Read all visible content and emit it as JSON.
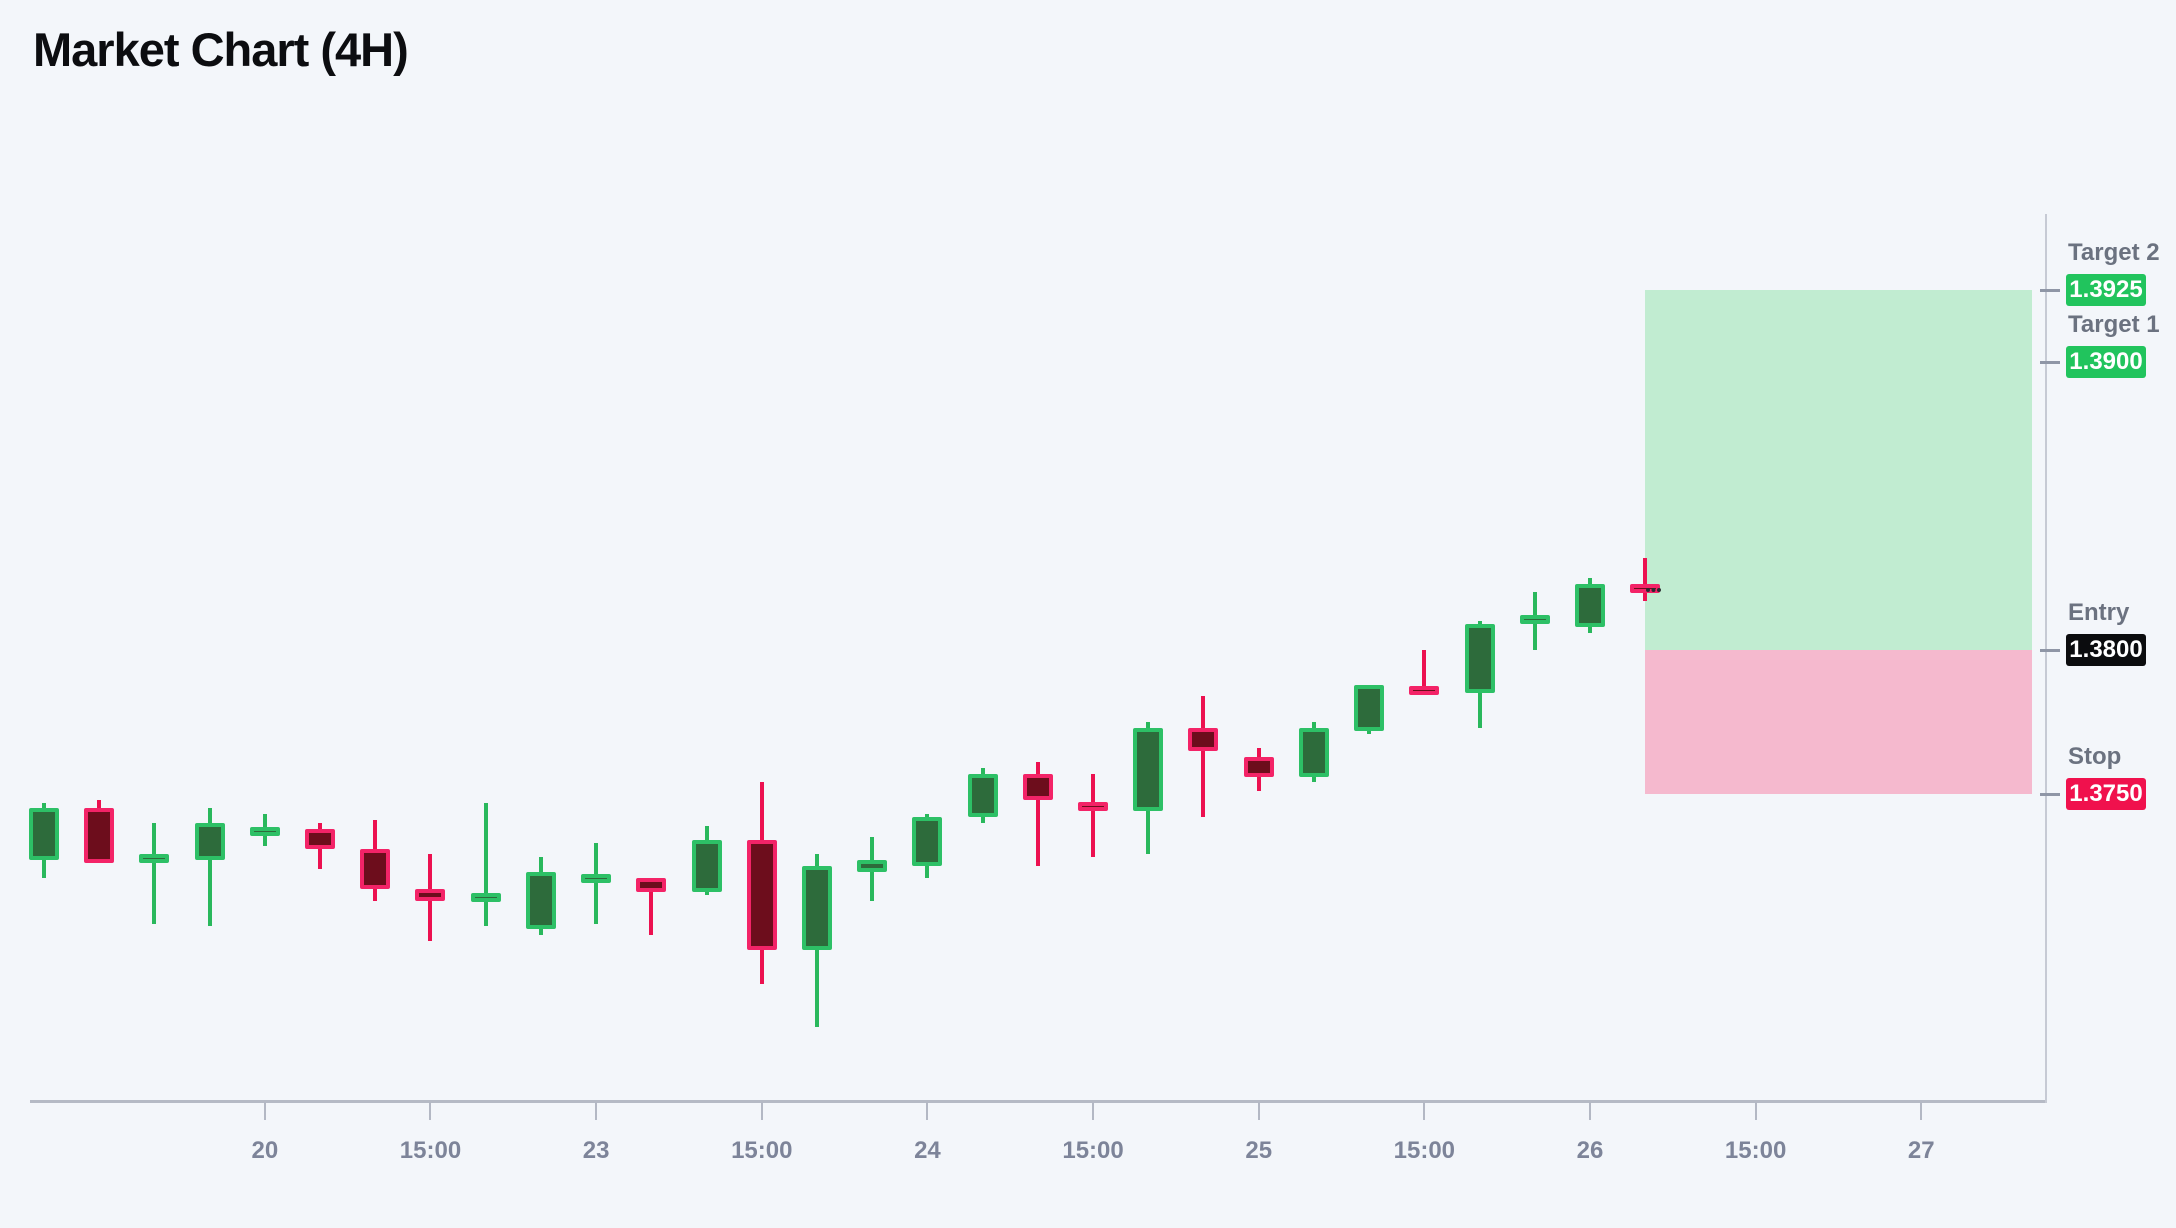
{
  "page_title": "Market Chart (4H)",
  "chart_data": {
    "type": "candlestick",
    "title": "Market Chart (4H)",
    "timeframe": "4H",
    "grid": false,
    "legend": false,
    "background": "#f3f6fa",
    "price_axis": {
      "side": "right",
      "visible_range": [
        1.366,
        1.394
      ]
    },
    "x_ticks": [
      {
        "label": "20",
        "candle_index": 4
      },
      {
        "label": "15:00",
        "candle_index": 7
      },
      {
        "label": "23",
        "candle_index": 10
      },
      {
        "label": "15:00",
        "candle_index": 13
      },
      {
        "label": "24",
        "candle_index": 16
      },
      {
        "label": "15:00",
        "candle_index": 19
      },
      {
        "label": "25",
        "candle_index": 22
      },
      {
        "label": "15:00",
        "candle_index": 25
      },
      {
        "label": "26",
        "candle_index": 28
      },
      {
        "label": "15:00",
        "candle_index": 31
      },
      {
        "label": "27",
        "candle_index": 34
      }
    ],
    "candles": [
      {
        "o": 1.3727,
        "h": 1.3747,
        "l": 1.3721,
        "c": 1.3745
      },
      {
        "o": 1.3745,
        "h": 1.3748,
        "l": 1.3726,
        "c": 1.3726
      },
      {
        "o": 1.3726,
        "h": 1.374,
        "l": 1.3705,
        "c": 1.3729
      },
      {
        "o": 1.3727,
        "h": 1.3745,
        "l": 1.3704,
        "c": 1.374
      },
      {
        "o": 1.3736,
        "h": 1.3743,
        "l": 1.3732,
        "c": 1.3738
      },
      {
        "o": 1.3738,
        "h": 1.374,
        "l": 1.3724,
        "c": 1.3731
      },
      {
        "o": 1.3731,
        "h": 1.3741,
        "l": 1.3713,
        "c": 1.3717
      },
      {
        "o": 1.3717,
        "h": 1.3729,
        "l": 1.3699,
        "c": 1.3713
      },
      {
        "o": 1.3713,
        "h": 1.3747,
        "l": 1.3704,
        "c": 1.3715
      },
      {
        "o": 1.3703,
        "h": 1.3728,
        "l": 1.3701,
        "c": 1.3723
      },
      {
        "o": 1.372,
        "h": 1.3733,
        "l": 1.3705,
        "c": 1.3721
      },
      {
        "o": 1.3721,
        "h": 1.3721,
        "l": 1.3701,
        "c": 1.3716
      },
      {
        "o": 1.3716,
        "h": 1.3739,
        "l": 1.3715,
        "c": 1.3734
      },
      {
        "o": 1.3734,
        "h": 1.3754,
        "l": 1.3684,
        "c": 1.3696
      },
      {
        "o": 1.3696,
        "h": 1.3729,
        "l": 1.3669,
        "c": 1.3725
      },
      {
        "o": 1.3723,
        "h": 1.3735,
        "l": 1.3713,
        "c": 1.3727
      },
      {
        "o": 1.3725,
        "h": 1.3743,
        "l": 1.3721,
        "c": 1.3742
      },
      {
        "o": 1.3742,
        "h": 1.3759,
        "l": 1.374,
        "c": 1.3757
      },
      {
        "o": 1.3757,
        "h": 1.3761,
        "l": 1.3725,
        "c": 1.3748
      },
      {
        "o": 1.3747,
        "h": 1.3757,
        "l": 1.3728,
        "c": 1.3744
      },
      {
        "o": 1.3744,
        "h": 1.3775,
        "l": 1.3729,
        "c": 1.3773
      },
      {
        "o": 1.3773,
        "h": 1.3784,
        "l": 1.3742,
        "c": 1.3765
      },
      {
        "o": 1.3763,
        "h": 1.3766,
        "l": 1.3751,
        "c": 1.3756
      },
      {
        "o": 1.3756,
        "h": 1.3775,
        "l": 1.3754,
        "c": 1.3773
      },
      {
        "o": 1.3772,
        "h": 1.3788,
        "l": 1.3771,
        "c": 1.3788
      },
      {
        "o": 1.3787,
        "h": 1.38,
        "l": 1.3785,
        "c": 1.3785
      },
      {
        "o": 1.3785,
        "h": 1.381,
        "l": 1.3773,
        "c": 1.3809
      },
      {
        "o": 1.3809,
        "h": 1.382,
        "l": 1.38,
        "c": 1.3812
      },
      {
        "o": 1.3808,
        "h": 1.3825,
        "l": 1.3806,
        "c": 1.3823
      },
      {
        "o": 1.3823,
        "h": 1.3832,
        "l": 1.3817,
        "c": 1.382
      }
    ],
    "levels": [
      {
        "id": "target2",
        "label": "Target 2",
        "value": "1.3925",
        "price": 1.3925,
        "badge_color": "#21c45d"
      },
      {
        "id": "target1",
        "label": "Target 1",
        "value": "1.3900",
        "price": 1.39,
        "badge_color": "#21c45d"
      },
      {
        "id": "entry",
        "label": "Entry",
        "value": "1.3800",
        "price": 1.38,
        "badge_color": "#0b0c0e"
      },
      {
        "id": "stop",
        "label": "Stop",
        "value": "1.3750",
        "price": 1.375,
        "badge_color": "#f0114d"
      }
    ],
    "zones": [
      {
        "id": "profit",
        "from": 1.38,
        "to": 1.3925,
        "color": "#c1ecd1"
      },
      {
        "id": "loss",
        "from": 1.375,
        "to": 1.38,
        "color": "#f5b9ce"
      }
    ],
    "last_price_marker": {
      "price": 1.3821,
      "style": "dotted",
      "color": "#2a2a30"
    },
    "colors": {
      "bull_fill": "#2d6b3b",
      "bull_border": "#2dc066",
      "bull_wick": "#29b85c",
      "bear_fill": "#6d0d1c",
      "bear_border": "#f32367",
      "bear_wick": "#ec1150",
      "axis_line": "#b5bac5",
      "tick_text": "#7d8499",
      "level_label_text": "#6b7280"
    }
  }
}
